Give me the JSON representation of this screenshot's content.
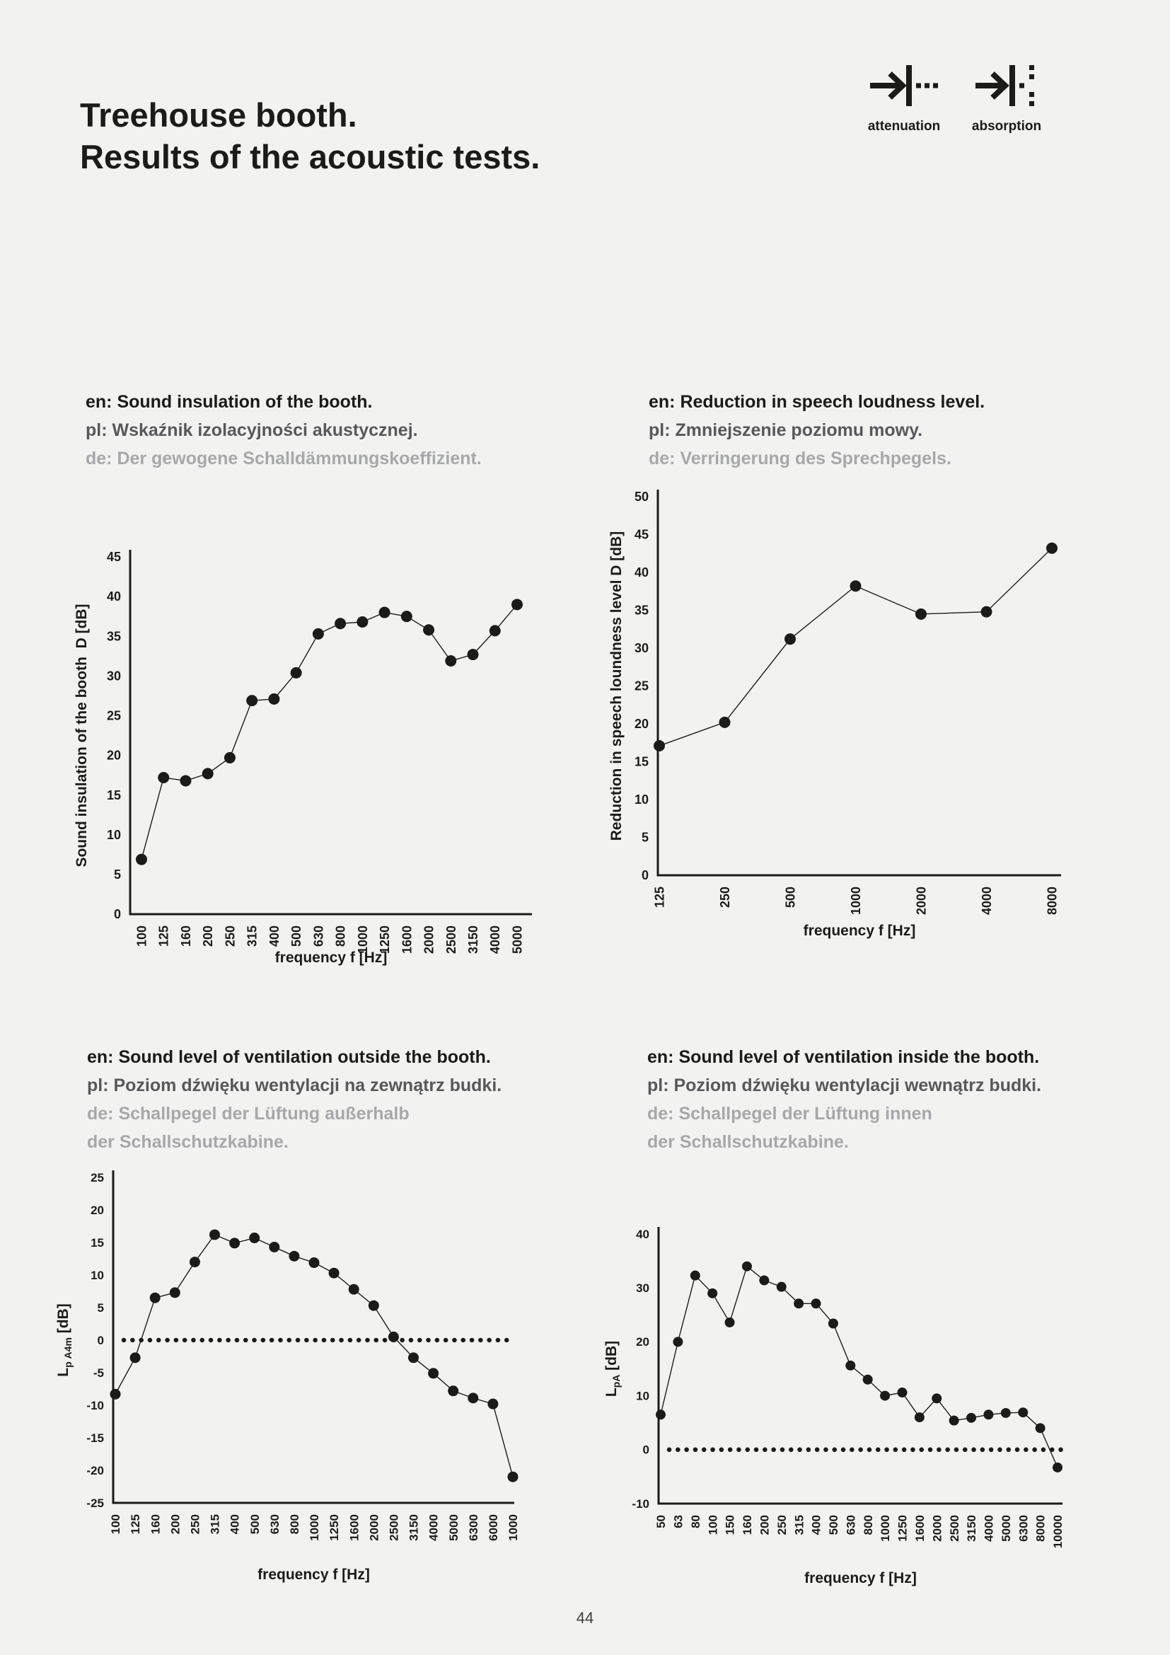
{
  "page": {
    "number": "44"
  },
  "colors": {
    "background": "#f2f2f1",
    "ink": "#1b1b1a",
    "pl_text": "#57585a",
    "de_text": "#a7a8aa"
  },
  "header": {
    "title_lines": [
      "Treehouse booth.",
      "Results of the acoustic tests."
    ],
    "legend": [
      {
        "icon": "attenuation-icon",
        "label": "attenuation"
      },
      {
        "icon": "absorption-icon",
        "label": "absorption"
      }
    ]
  },
  "chart_data": [
    {
      "name": "sound-insulation-of-the-booth",
      "type": "line",
      "heading": {
        "en": "en: Sound insulation of the booth.",
        "pl": "pl: Wskaźnik izolacyjności akustycznej.",
        "de": [
          "de: Der gewogene Schalldämmungskoeffizient."
        ]
      },
      "xlabel": "frequency f [Hz]",
      "ylabel_parts": [
        {
          "text": "Sound insulation of the booth  D [dB]"
        }
      ],
      "ylim": [
        0,
        45
      ],
      "ytick_step": 5,
      "grid": false,
      "zero_dotted_line": false,
      "categories": [
        "100",
        "125",
        "160",
        "200",
        "250",
        "315",
        "400",
        "500",
        "630",
        "800",
        "1000",
        "1250",
        "1600",
        "2000",
        "2500",
        "3150",
        "4000",
        "5000"
      ],
      "values": [
        6.9,
        17.2,
        16.8,
        17.7,
        19.7,
        26.9,
        27.1,
        30.4,
        35.3,
        36.6,
        36.8,
        38.0,
        37.5,
        35.8,
        31.9,
        32.7,
        35.7,
        39.0
      ]
    },
    {
      "name": "reduction-in-speech-loudness-level",
      "type": "line",
      "heading": {
        "en": "en: Reduction in speech loudness level.",
        "pl": "pl: Zmniejszenie poziomu mowy.",
        "de": [
          "de: Verringerung des Sprechpegels."
        ]
      },
      "xlabel": "frequency f [Hz]",
      "ylabel_parts": [
        {
          "text": "Reduction in speech loundness level D [dB]"
        }
      ],
      "ylim": [
        0,
        50
      ],
      "ytick_step": 5,
      "grid": false,
      "zero_dotted_line": false,
      "categories": [
        "125",
        "250",
        "500",
        "1000",
        "2000",
        "4000",
        "8000"
      ],
      "values": [
        17.1,
        20.2,
        31.2,
        38.2,
        34.5,
        34.8,
        43.2
      ]
    },
    {
      "name": "sound-level-of-ventilation-outside-the-booth",
      "type": "line",
      "heading": {
        "en": "en: Sound level of ventilation outside the booth.",
        "pl": "pl: Poziom dźwięku wentylacji na zewnątrz budki.",
        "de": [
          "de: Schallpegel der Lüftung außerhalb",
          "der Schallschutzkabine."
        ]
      },
      "xlabel": "frequency f [Hz]",
      "ylabel_parts": [
        {
          "text": "L"
        },
        {
          "text": "p A4m",
          "sub": true
        },
        {
          "text": " [dB]"
        }
      ],
      "ylim": [
        -25,
        25
      ],
      "ytick_step": 5,
      "grid": false,
      "zero_dotted_line": true,
      "categories": [
        "100",
        "125",
        "160",
        "200",
        "250",
        "315",
        "400",
        "500",
        "630",
        "800",
        "1000",
        "1250",
        "1600",
        "2000",
        "2500",
        "3150",
        "4000",
        "5000",
        "6300",
        "6000",
        "1000"
      ],
      "values": [
        -8.3,
        -2.7,
        6.5,
        7.3,
        12.0,
        16.2,
        14.9,
        15.7,
        14.3,
        12.9,
        11.9,
        10.3,
        7.8,
        5.3,
        0.5,
        -2.7,
        -5.1,
        -7.8,
        -8.9,
        -9.8,
        -21.0
      ]
    },
    {
      "name": "sound-level-of-ventilation-inside-the-booth",
      "type": "line",
      "heading": {
        "en": "en: Sound level of ventilation inside the booth.",
        "pl": "pl: Poziom dźwięku wentylacji wewnątrz budki.",
        "de": [
          "de: Schallpegel der Lüftung innen",
          "der Schallschutzkabine."
        ]
      },
      "xlabel": "frequency f [Hz]",
      "ylabel_parts": [
        {
          "text": "L"
        },
        {
          "text": "pA",
          "sub": true
        },
        {
          "text": " [dB]"
        }
      ],
      "ylim": [
        -10,
        40
      ],
      "ytick_step": 10,
      "grid": false,
      "zero_dotted_line": true,
      "categories": [
        "50",
        "63",
        "80",
        "100",
        "150",
        "160",
        "200",
        "250",
        "315",
        "400",
        "500",
        "630",
        "800",
        "1000",
        "1250",
        "1600",
        "2000",
        "2500",
        "3150",
        "4000",
        "5000",
        "6300",
        "8000",
        "10000"
      ],
      "values": [
        6.5,
        20.0,
        32.3,
        29.0,
        23.6,
        34.0,
        31.4,
        30.2,
        27.1,
        27.1,
        23.4,
        15.6,
        13.0,
        10.0,
        10.6,
        6.0,
        9.5,
        5.4,
        5.9,
        6.5,
        6.8,
        6.9,
        4.0,
        -3.3
      ]
    }
  ]
}
